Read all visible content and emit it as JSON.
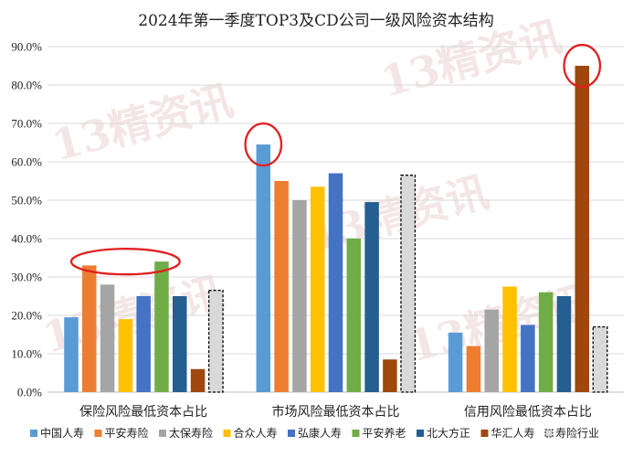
{
  "chart_data": {
    "type": "bar",
    "title": "2024年第一季度TOP3及CD公司一级风险资本结构",
    "categories": [
      "保险风险最低资本占比",
      "市场风险最低资本占比",
      "信用风险最低资本占比"
    ],
    "ylim": [
      0,
      90
    ],
    "y_ticks": [
      "0.0%",
      "10.0%",
      "20.0%",
      "30.0%",
      "40.0%",
      "50.0%",
      "60.0%",
      "70.0%",
      "80.0%",
      "90.0%"
    ],
    "grid": true,
    "legend_position": "bottom",
    "series": [
      {
        "name": "中国人寿",
        "color": "#5B9BD5",
        "values": [
          19.5,
          64.5,
          15.5
        ]
      },
      {
        "name": "平安寿险",
        "color": "#ED7D31",
        "values": [
          33.0,
          55.0,
          12.0
        ]
      },
      {
        "name": "太保寿险",
        "color": "#A5A5A5",
        "values": [
          28.0,
          50.0,
          21.5
        ]
      },
      {
        "name": "合众人寿",
        "color": "#FFC000",
        "values": [
          19.0,
          53.5,
          27.5
        ]
      },
      {
        "name": "弘康人寿",
        "color": "#4472C4",
        "values": [
          25.0,
          57.0,
          17.5
        ]
      },
      {
        "name": "平安养老",
        "color": "#70AD47",
        "values": [
          34.0,
          40.0,
          26.0
        ]
      },
      {
        "name": "北大方正",
        "color": "#255E91",
        "values": [
          25.0,
          49.5,
          25.0
        ]
      },
      {
        "name": "华汇人寿",
        "color": "#9E480E",
        "values": [
          6.0,
          8.5,
          85.0
        ]
      },
      {
        "name": "寿险行业",
        "color": "#D9D9D9",
        "dashed": true,
        "values": [
          26.5,
          56.5,
          17.0
        ]
      }
    ],
    "highlights": [
      {
        "category_index": 0,
        "series_from": 1,
        "series_to": 5,
        "color": "#E02020"
      },
      {
        "category_index": 1,
        "series_from": 0,
        "series_to": 0,
        "color": "#E02020"
      },
      {
        "category_index": 2,
        "series_from": 7,
        "series_to": 7,
        "color": "#E02020"
      }
    ],
    "watermark": "13精资讯"
  }
}
